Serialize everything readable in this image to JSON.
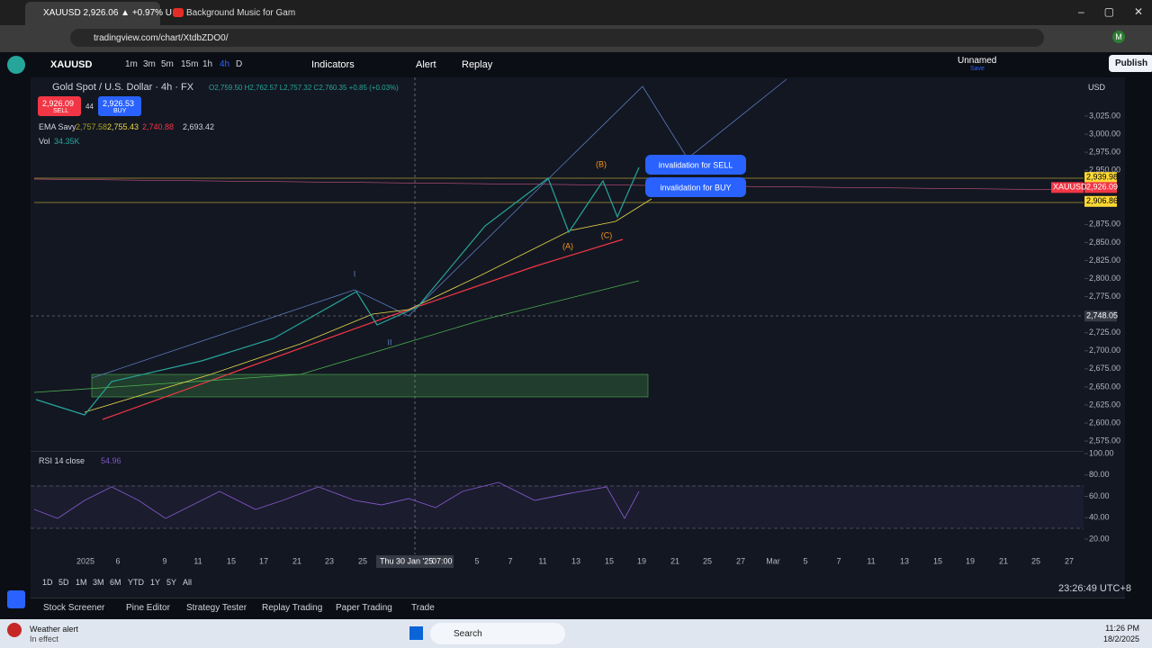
{
  "browser": {
    "tabs": [
      "XAUUSD 2,926.06 ▲ +0.97% U",
      "Background Music for Gam"
    ],
    "url": "tradingview.com/chart/XtdbZDO0/"
  },
  "toolbar": {
    "symbol": "XAUUSD",
    "intervals": [
      "1m",
      "3m",
      "5m",
      "15m",
      "1h",
      "4h",
      "D"
    ],
    "indicators": "Indicators",
    "alert": "Alert",
    "replay": "Replay",
    "layout_name": "Unnamed",
    "layout_status": "Save",
    "publish": "Publish"
  },
  "chart": {
    "legend_title": "Gold Spot / U.S. Dollar · 4h · FX",
    "ohlc": "O2,759.50 H2,762.57 L2,757.32 C2,760.35 +0.85 (+0.03%)",
    "sell_price": "2,926.09",
    "sell": "SELL",
    "spread": "44",
    "buy_price": "2,926.53",
    "buy": "BUY",
    "ema": {
      "label": "EMA Savy",
      "values": [
        "2,757.58",
        "2,755.43",
        "2,740.88",
        "2,693.42"
      ]
    },
    "vol": {
      "label": "Vol",
      "value": "34.35K"
    },
    "currency": "USD",
    "price_ticks": [
      {
        "value": 3025,
        "label": "3,025.00"
      },
      {
        "value": 3000,
        "label": "3,000.00"
      },
      {
        "value": 2975,
        "label": "2,975.00"
      },
      {
        "value": 2950,
        "label": "2,950.00"
      },
      {
        "value": 2875,
        "label": "2,875.00"
      },
      {
        "value": 2850,
        "label": "2,850.00"
      },
      {
        "value": 2825,
        "label": "2,825.00"
      },
      {
        "value": 2800,
        "label": "2,800.00"
      },
      {
        "value": 2775,
        "label": "2,775.00"
      },
      {
        "value": 2725,
        "label": "2,725.00"
      },
      {
        "value": 2700,
        "label": "2,700.00"
      },
      {
        "value": 2675,
        "label": "2,675.00"
      },
      {
        "value": 2650,
        "label": "2,650.00"
      },
      {
        "value": 2625,
        "label": "2,625.00"
      },
      {
        "value": 2600,
        "label": "2,600.00"
      },
      {
        "value": 2575,
        "label": "2,575.00"
      }
    ],
    "price_labels": {
      "upper": {
        "value": 2939.98,
        "label": "2,939.98"
      },
      "current": {
        "value": 2926.09,
        "label": "2,926.09"
      },
      "symbol": "XAUUSD",
      "lower": {
        "value": 2906.86,
        "label": "2,906.86"
      },
      "crosshair": {
        "value": 2748.05,
        "label": "2,748.05"
      }
    },
    "annotations": [
      "invalidation for SELL",
      "invalidation for BUY"
    ],
    "wave_labels": [
      "(B)",
      "(A)",
      "(C)",
      "I",
      "II"
    ],
    "rsi": {
      "label": "RSI 14 close",
      "value": "54.96",
      "ticks": [
        {
          "value": 100,
          "label": "100.00"
        },
        {
          "value": 80,
          "label": "80.00"
        },
        {
          "value": 60,
          "label": "60.00"
        },
        {
          "value": 40,
          "label": "40.00"
        },
        {
          "value": 20,
          "label": "20.00"
        }
      ]
    },
    "time_axis": [
      "2025",
      "6",
      "9",
      "11",
      "15",
      "17",
      "21",
      "23",
      "25",
      "5",
      "7",
      "11",
      "13",
      "15",
      "19",
      "21",
      "25",
      "27",
      "Mar",
      "5",
      "7",
      "11",
      "13",
      "15",
      "19",
      "21",
      "25",
      "27"
    ],
    "crosshair_date": "Thu 30 Jan '25",
    "crosshair_time": "07:00",
    "ranges": [
      "1D",
      "5D",
      "1M",
      "3M",
      "6M",
      "YTD",
      "1Y",
      "5Y",
      "All"
    ],
    "clock": "23:26:49 UTC+8"
  },
  "bottom_tabs": [
    "Stock Screener",
    "Pine Editor",
    "Strategy Tester",
    "Replay Trading",
    "Paper Trading",
    "Trade"
  ],
  "taskbar": {
    "weather_title": "Weather alert",
    "weather_sub": "In effect",
    "search": "Search",
    "time": "11:26 PM",
    "date": "18/2/2025"
  }
}
